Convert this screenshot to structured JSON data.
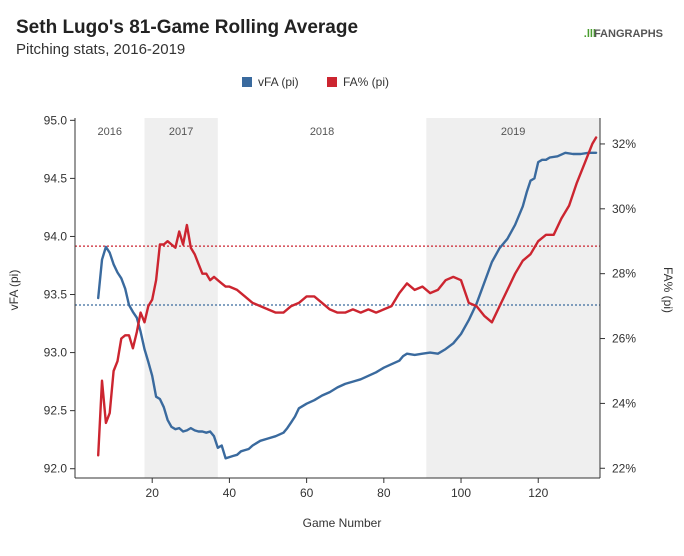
{
  "chart_data": {
    "type": "line",
    "title": "Seth Lugo's 81-Game Rolling Average",
    "subtitle": "Pitching stats, 2016-2019",
    "brand": {
      "prefix": ".lll",
      "name": "FANGRAPHS",
      "accent": "#4a9e2f",
      "text_color": "#555555"
    },
    "xlabel": "Game Number",
    "ylabel_left": "vFA (pi)",
    "ylabel_right": "FA% (pi)",
    "xlim": [
      0,
      136
    ],
    "ylim_left": [
      91.92,
      95.02
    ],
    "ylim_right": [
      21.7,
      32.8
    ],
    "x_ticks": [
      20,
      40,
      60,
      80,
      100,
      120
    ],
    "y_ticks_left": [
      "92.0",
      "92.5",
      "93.0",
      "93.5",
      "94.0",
      "94.5",
      "95.0"
    ],
    "y_ticks_right": [
      "22%",
      "24%",
      "26%",
      "28%",
      "30%",
      "32%"
    ],
    "y_ticks_right_values": [
      22,
      24,
      26,
      28,
      30,
      32
    ],
    "seasons": [
      {
        "label": "2016",
        "start": 0,
        "end": 18,
        "shaded": false
      },
      {
        "label": "2017",
        "start": 18,
        "end": 37,
        "shaded": true
      },
      {
        "label": "2018",
        "start": 37,
        "end": 91,
        "shaded": false
      },
      {
        "label": "2019",
        "start": 91,
        "end": 136,
        "shaded": true
      }
    ],
    "reference_lines": [
      {
        "series": "vFA (pi)",
        "axis": "left",
        "value": 93.41,
        "color": "#3a6a9e"
      },
      {
        "series": "FA% (pi)",
        "axis": "right",
        "value": 28.85,
        "color": "#cc2530"
      }
    ],
    "series": [
      {
        "name": "vFA (pi)",
        "axis": "left",
        "color": "#3a6a9e",
        "points": [
          [
            6,
            93.47
          ],
          [
            7,
            93.8
          ],
          [
            8,
            93.91
          ],
          [
            9,
            93.86
          ],
          [
            10,
            93.76
          ],
          [
            11,
            93.69
          ],
          [
            12,
            93.64
          ],
          [
            13,
            93.55
          ],
          [
            14,
            93.41
          ],
          [
            15,
            93.35
          ],
          [
            16,
            93.3
          ],
          [
            17,
            93.18
          ],
          [
            18,
            93.03
          ],
          [
            19,
            92.92
          ],
          [
            20,
            92.8
          ],
          [
            21,
            92.62
          ],
          [
            22,
            92.6
          ],
          [
            23,
            92.53
          ],
          [
            24,
            92.42
          ],
          [
            25,
            92.36
          ],
          [
            26,
            92.34
          ],
          [
            27,
            92.35
          ],
          [
            28,
            92.32
          ],
          [
            29,
            92.33
          ],
          [
            30,
            92.35
          ],
          [
            31,
            92.33
          ],
          [
            32,
            92.32
          ],
          [
            33,
            92.32
          ],
          [
            34,
            92.31
          ],
          [
            35,
            92.32
          ],
          [
            36,
            92.28
          ],
          [
            37,
            92.18
          ],
          [
            38,
            92.2
          ],
          [
            39,
            92.09
          ],
          [
            40,
            92.1
          ],
          [
            41,
            92.11
          ],
          [
            42,
            92.12
          ],
          [
            43,
            92.15
          ],
          [
            44,
            92.16
          ],
          [
            45,
            92.17
          ],
          [
            46,
            92.2
          ],
          [
            47,
            92.22
          ],
          [
            48,
            92.24
          ],
          [
            50,
            92.26
          ],
          [
            52,
            92.28
          ],
          [
            54,
            92.31
          ],
          [
            55,
            92.35
          ],
          [
            56,
            92.4
          ],
          [
            57,
            92.45
          ],
          [
            58,
            92.52
          ],
          [
            60,
            92.56
          ],
          [
            62,
            92.59
          ],
          [
            64,
            92.63
          ],
          [
            66,
            92.66
          ],
          [
            68,
            92.7
          ],
          [
            70,
            92.73
          ],
          [
            72,
            92.75
          ],
          [
            74,
            92.77
          ],
          [
            76,
            92.8
          ],
          [
            78,
            92.83
          ],
          [
            80,
            92.87
          ],
          [
            82,
            92.9
          ],
          [
            84,
            92.93
          ],
          [
            85,
            92.97
          ],
          [
            86,
            92.99
          ],
          [
            88,
            92.98
          ],
          [
            90,
            92.99
          ],
          [
            92,
            93.0
          ],
          [
            94,
            92.99
          ],
          [
            96,
            93.03
          ],
          [
            98,
            93.08
          ],
          [
            100,
            93.16
          ],
          [
            102,
            93.28
          ],
          [
            104,
            93.42
          ],
          [
            106,
            93.6
          ],
          [
            108,
            93.78
          ],
          [
            110,
            93.9
          ],
          [
            112,
            93.98
          ],
          [
            114,
            94.1
          ],
          [
            116,
            94.26
          ],
          [
            117,
            94.38
          ],
          [
            118,
            94.48
          ],
          [
            119,
            94.5
          ],
          [
            120,
            94.64
          ],
          [
            121,
            94.66
          ],
          [
            122,
            94.66
          ],
          [
            123,
            94.68
          ],
          [
            125,
            94.69
          ],
          [
            127,
            94.72
          ],
          [
            129,
            94.71
          ],
          [
            131,
            94.71
          ],
          [
            133,
            94.72
          ],
          [
            135,
            94.72
          ]
        ]
      },
      {
        "name": "FA% (pi)",
        "axis": "right",
        "color": "#cc2530",
        "points": [
          [
            6,
            22.4
          ],
          [
            7,
            24.7
          ],
          [
            8,
            23.4
          ],
          [
            9,
            23.7
          ],
          [
            10,
            25.0
          ],
          [
            11,
            25.3
          ],
          [
            12,
            26.0
          ],
          [
            13,
            26.1
          ],
          [
            14,
            26.1
          ],
          [
            15,
            25.7
          ],
          [
            16,
            26.2
          ],
          [
            17,
            26.8
          ],
          [
            18,
            26.5
          ],
          [
            19,
            27.0
          ],
          [
            20,
            27.2
          ],
          [
            21,
            27.8
          ],
          [
            22,
            28.9
          ],
          [
            23,
            28.9
          ],
          [
            24,
            29.0
          ],
          [
            25,
            28.9
          ],
          [
            26,
            28.8
          ],
          [
            27,
            29.3
          ],
          [
            28,
            28.9
          ],
          [
            29,
            29.5
          ],
          [
            30,
            28.8
          ],
          [
            31,
            28.6
          ],
          [
            32,
            28.3
          ],
          [
            33,
            28.0
          ],
          [
            34,
            28.0
          ],
          [
            35,
            27.8
          ],
          [
            36,
            27.9
          ],
          [
            37,
            27.8
          ],
          [
            38,
            27.7
          ],
          [
            39,
            27.6
          ],
          [
            40,
            27.6
          ],
          [
            42,
            27.5
          ],
          [
            44,
            27.3
          ],
          [
            46,
            27.1
          ],
          [
            48,
            27.0
          ],
          [
            50,
            26.9
          ],
          [
            52,
            26.8
          ],
          [
            54,
            26.8
          ],
          [
            56,
            27.0
          ],
          [
            58,
            27.1
          ],
          [
            60,
            27.3
          ],
          [
            62,
            27.3
          ],
          [
            64,
            27.1
          ],
          [
            66,
            26.9
          ],
          [
            68,
            26.8
          ],
          [
            70,
            26.8
          ],
          [
            72,
            26.9
          ],
          [
            74,
            26.8
          ],
          [
            76,
            26.9
          ],
          [
            78,
            26.8
          ],
          [
            80,
            26.9
          ],
          [
            82,
            27.0
          ],
          [
            84,
            27.4
          ],
          [
            86,
            27.7
          ],
          [
            88,
            27.5
          ],
          [
            90,
            27.6
          ],
          [
            92,
            27.4
          ],
          [
            94,
            27.5
          ],
          [
            96,
            27.8
          ],
          [
            98,
            27.9
          ],
          [
            100,
            27.8
          ],
          [
            102,
            27.1
          ],
          [
            104,
            27.0
          ],
          [
            106,
            26.7
          ],
          [
            108,
            26.5
          ],
          [
            110,
            27.0
          ],
          [
            112,
            27.5
          ],
          [
            114,
            28.0
          ],
          [
            116,
            28.4
          ],
          [
            118,
            28.6
          ],
          [
            120,
            29.0
          ],
          [
            122,
            29.2
          ],
          [
            124,
            29.2
          ],
          [
            126,
            29.7
          ],
          [
            128,
            30.1
          ],
          [
            130,
            30.8
          ],
          [
            132,
            31.4
          ],
          [
            134,
            32.0
          ],
          [
            135,
            32.2
          ]
        ]
      }
    ]
  }
}
